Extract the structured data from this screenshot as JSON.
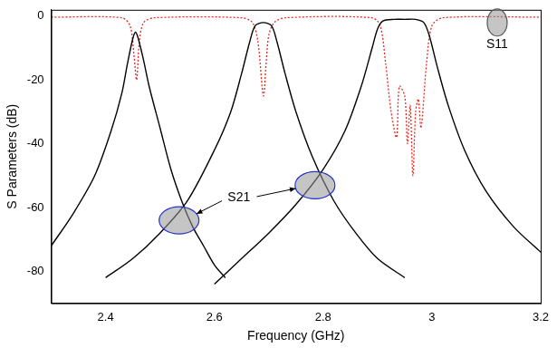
{
  "chart_data": {
    "type": "line",
    "x_label": "Frequency (GHz)",
    "y_label": "S Parameters (dB)",
    "xlim": [
      2.3,
      3.2
    ],
    "xticks": [
      2.4,
      2.6,
      2.8,
      3.0,
      3.2
    ],
    "ylim": [
      -90,
      2
    ],
    "yticks": [
      -80,
      -60,
      -40,
      -20,
      0
    ],
    "grid": false,
    "series": [
      {
        "name": "S21",
        "color": "#000000",
        "line_style": "solid",
        "x": [
          2.3,
          2.34,
          2.38,
          2.41,
          2.43,
          2.44,
          2.45,
          2.455,
          2.46,
          2.47,
          2.48,
          2.5,
          2.52,
          2.54,
          2.56,
          2.58,
          2.6,
          2.62
        ],
        "values": [
          -72,
          -62,
          -50,
          -36,
          -24,
          -15,
          -7,
          -5,
          -7,
          -14,
          -22,
          -35,
          -48,
          -58,
          -66,
          -72,
          -78,
          -82
        ]
      },
      {
        "name": "S21",
        "color": "#000000",
        "line_style": "solid",
        "x": [
          2.4,
          2.45,
          2.5,
          2.55,
          2.6,
          2.63,
          2.65,
          2.665,
          2.675,
          2.69,
          2.705,
          2.715,
          2.73,
          2.75,
          2.78,
          2.82,
          2.86,
          2.9,
          2.95
        ],
        "values": [
          -82,
          -76,
          -68,
          -58,
          -42,
          -30,
          -18,
          -8,
          -3,
          -2,
          -3,
          -8,
          -18,
          -30,
          -44,
          -58,
          -68,
          -76,
          -82
        ]
      },
      {
        "name": "S21",
        "color": "#000000",
        "line_style": "solid",
        "x": [
          2.6,
          2.65,
          2.7,
          2.75,
          2.8,
          2.84,
          2.87,
          2.89,
          2.9,
          2.91,
          2.93,
          2.95,
          2.97,
          2.985,
          2.995,
          3.01,
          3.03,
          3.06,
          3.1,
          3.15,
          3.2
        ],
        "values": [
          -84,
          -76,
          -68,
          -59,
          -48,
          -36,
          -22,
          -10,
          -4,
          -1.5,
          -1,
          -1,
          -1,
          -2,
          -6,
          -16,
          -28,
          -42,
          -55,
          -66,
          -74
        ]
      },
      {
        "name": "S11",
        "color": "#e8281e",
        "line_style": "dotted",
        "x": [
          2.3,
          2.43,
          2.445,
          2.452,
          2.457,
          2.462,
          2.47,
          2.49,
          2.65,
          2.67,
          2.68,
          2.69,
          2.695,
          2.7,
          2.71,
          2.73,
          2.89,
          2.905,
          2.915,
          2.925,
          2.935,
          2.94,
          2.95,
          2.955,
          2.96,
          2.965,
          2.97,
          2.975,
          2.98,
          2.99,
          3.0,
          3.02,
          3.2
        ],
        "values": [
          -0.3,
          -0.5,
          -3,
          -12,
          -20,
          -8,
          -2,
          -0.5,
          -0.5,
          -2,
          -8,
          -25,
          -15,
          -6,
          -2,
          -0.5,
          -0.5,
          -3,
          -15,
          -30,
          -38,
          -22,
          -25,
          -40,
          -28,
          -50,
          -30,
          -26,
          -35,
          -15,
          -3,
          -0.5,
          -0.3
        ]
      }
    ],
    "annotations": [
      {
        "text": "S11",
        "x": 3.12,
        "y": -9,
        "points": [
          {
            "x": 3.12,
            "y": -2
          }
        ]
      },
      {
        "text": "S21",
        "x": 2.645,
        "y": -57,
        "points": [
          {
            "x": 2.535,
            "y": -64
          },
          {
            "x": 2.785,
            "y": -53
          }
        ]
      }
    ]
  }
}
